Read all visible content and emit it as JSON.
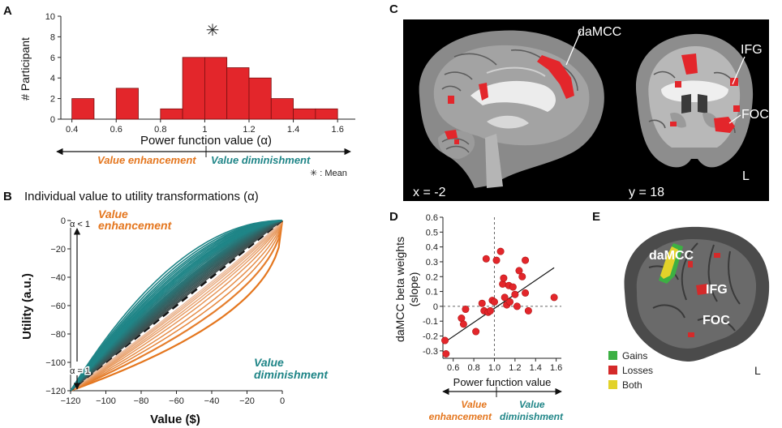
{
  "panels": {
    "A": {
      "letter": "A"
    },
    "B": {
      "letter": "B",
      "title": "Individual value to utility transformations (α)"
    },
    "C": {
      "letter": "C"
    },
    "D": {
      "letter": "D"
    },
    "E": {
      "letter": "E"
    }
  },
  "panelA": {
    "mean_marker": "✳",
    "arrow_left_label": "Value enhancement",
    "arrow_right_label": "Value diminishment",
    "mean_legend": "✳ : Mean"
  },
  "panelB": {
    "alpha_lt1": "α < 1",
    "alpha_eq1": "α = 1",
    "enh_line1": "Value",
    "enh_line2": "enhancement",
    "dim_line1": "Value",
    "dim_line2": "diminishment"
  },
  "panelC": {
    "label_damcc": "daMCC",
    "label_ifg": "IFG",
    "label_foc": "FOC",
    "coord_sag": "x = -2",
    "coord_cor": "y = 18",
    "side_label": "L"
  },
  "panelD": {
    "arrow_left_line1": "Value",
    "arrow_left_line2": "enhancement",
    "arrow_right_line1": "Value",
    "arrow_right_line2": "diminishment"
  },
  "panelE": {
    "label_damcc": "daMCC",
    "label_ifg": "IFG",
    "label_foc": "FOC",
    "side_label": "L",
    "legend": [
      {
        "label": "Gains",
        "color": "#3cb043"
      },
      {
        "label": "Losses",
        "color": "#d42a2a"
      },
      {
        "label": "Both",
        "color": "#e2d22a"
      }
    ]
  },
  "colors": {
    "red": "#e3262b",
    "orange": "#e4761e",
    "teal": "#1f8587",
    "dark": "#3f4b4b"
  },
  "chart_data": [
    {
      "id": "A",
      "type": "bar",
      "title": "",
      "xlabel": "Power function value (α)",
      "ylabel": "# Participant",
      "bins": [
        [
          0.4,
          0.5
        ],
        [
          0.5,
          0.6
        ],
        [
          0.6,
          0.7
        ],
        [
          0.7,
          0.8
        ],
        [
          0.8,
          0.9
        ],
        [
          0.9,
          1.0
        ],
        [
          1.0,
          1.1
        ],
        [
          1.1,
          1.2
        ],
        [
          1.2,
          1.3
        ],
        [
          1.3,
          1.4
        ],
        [
          1.4,
          1.5
        ],
        [
          1.5,
          1.6
        ]
      ],
      "values": [
        2,
        0,
        3,
        0,
        1,
        6,
        6,
        5,
        4,
        2,
        1,
        1
      ],
      "mean": 1.02,
      "xlim": [
        0.35,
        1.68
      ],
      "ylim": [
        0,
        10
      ],
      "xticks": [
        0.4,
        0.6,
        0.8,
        1,
        1.2,
        1.4,
        1.6
      ],
      "yticks": [
        0,
        2,
        4,
        6,
        8,
        10
      ]
    },
    {
      "id": "B",
      "type": "line",
      "xlabel": "Value ($)",
      "ylabel": "Utility (a.u.)",
      "xlim": [
        -120,
        0
      ],
      "ylim": [
        -120,
        0
      ],
      "xticks": [
        -120,
        -100,
        -80,
        -60,
        -40,
        -20,
        0
      ],
      "yticks": [
        0,
        -20,
        -40,
        -60,
        -80,
        -100,
        -120
      ],
      "curve": "u = -(-v)^alpha (scaled to axis)",
      "enhancement_alphas": [
        0.45,
        0.55,
        0.62,
        0.68,
        0.74,
        0.79,
        0.83,
        0.87,
        0.9,
        0.93
      ],
      "identity_alpha": 1.0,
      "diminishment_alphas": [
        1.03,
        1.06,
        1.09,
        1.12,
        1.15,
        1.18,
        1.21,
        1.24,
        1.27,
        1.3,
        1.33,
        1.36,
        1.4,
        1.44,
        1.48,
        1.52,
        1.56,
        1.6,
        1.65,
        1.7,
        1.76,
        1.82,
        1.9,
        2.0
      ]
    },
    {
      "id": "D",
      "type": "scatter",
      "xlabel": "Power function value",
      "ylabel": "daMCC beta weights (slope)",
      "xlim": [
        0.5,
        1.65
      ],
      "ylim": [
        -0.35,
        0.6
      ],
      "xticks": [
        0.6,
        0.8,
        1.0,
        1.2,
        1.4,
        1.6
      ],
      "yticks": [
        0.6,
        0.5,
        0.4,
        0.3,
        0.2,
        0.1,
        0,
        -0.1,
        -0.2,
        -0.3
      ],
      "points": [
        [
          0.52,
          -0.23
        ],
        [
          0.53,
          -0.32
        ],
        [
          0.68,
          -0.08
        ],
        [
          0.7,
          -0.12
        ],
        [
          0.72,
          -0.02
        ],
        [
          0.82,
          -0.17
        ],
        [
          0.88,
          0.02
        ],
        [
          0.9,
          -0.03
        ],
        [
          0.92,
          0.32
        ],
        [
          0.94,
          -0.04
        ],
        [
          0.96,
          -0.03
        ],
        [
          0.98,
          0.04
        ],
        [
          1.0,
          0.03
        ],
        [
          1.02,
          0.31
        ],
        [
          1.06,
          0.37
        ],
        [
          1.08,
          0.15
        ],
        [
          1.09,
          0.19
        ],
        [
          1.1,
          0.06
        ],
        [
          1.12,
          0.01
        ],
        [
          1.14,
          0.14
        ],
        [
          1.15,
          0.03
        ],
        [
          1.18,
          0.13
        ],
        [
          1.2,
          0.08
        ],
        [
          1.22,
          0.0
        ],
        [
          1.24,
          0.24
        ],
        [
          1.27,
          0.2
        ],
        [
          1.3,
          0.09
        ],
        [
          1.3,
          0.31
        ],
        [
          1.33,
          -0.03
        ],
        [
          1.58,
          0.06
        ]
      ],
      "fit": {
        "x": [
          0.5,
          1.58
        ],
        "y": [
          -0.25,
          0.26
        ]
      },
      "ref_x": 1.0,
      "ref_y": 0
    }
  ]
}
